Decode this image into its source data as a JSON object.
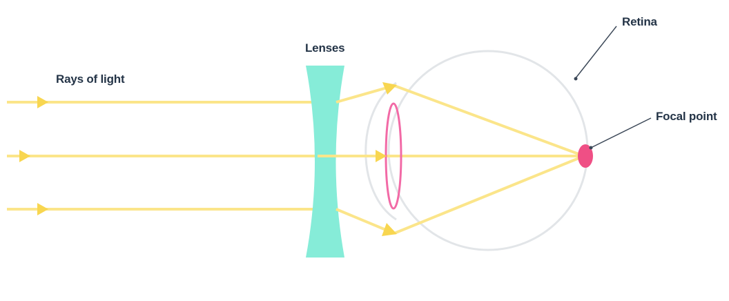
{
  "labels": {
    "rays_of_light": "Rays of light",
    "lenses": "Lenses",
    "retina": "Retina",
    "focal_point": "Focal point"
  },
  "colors": {
    "ray": "#fbe58a",
    "ray_arrow": "#f8d650",
    "lens": "#86ecd8",
    "eyeball_outline": "#e2e5e8",
    "eye_lens": "#f26aa6",
    "focal_point": "#ef4f85",
    "leader_line": "#3b4757",
    "label_text": "#243447"
  }
}
